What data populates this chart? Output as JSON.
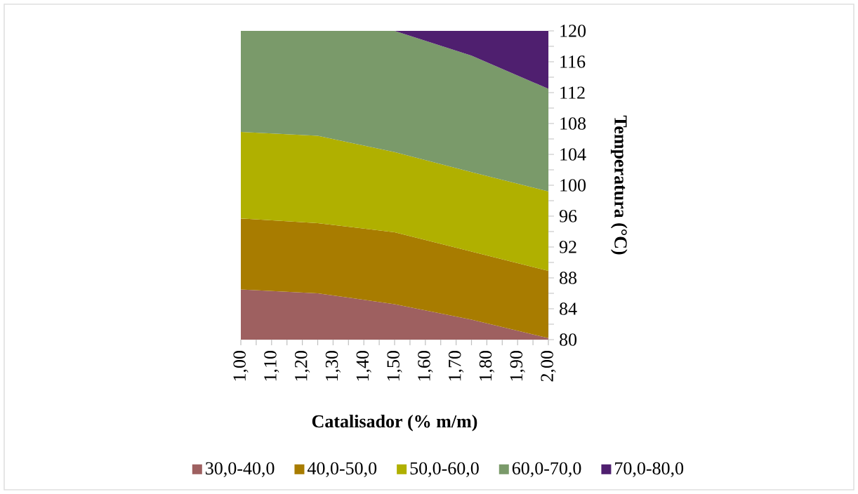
{
  "chart_data": {
    "type": "area",
    "xlabel": "Catalisador (% m/m)",
    "ylabel": "Temperatura (°C)",
    "x": [
      1.0,
      1.25,
      1.5,
      1.75,
      2.0
    ],
    "series": [
      {
        "name": "30,0-40,0",
        "color": "#9e6060",
        "values": [
          86.5,
          86.0,
          84.6,
          82.6,
          80.2
        ]
      },
      {
        "name": "40,0-50,0",
        "color": "#a87c00",
        "values": [
          95.7,
          95.1,
          93.9,
          91.4,
          88.9
        ]
      },
      {
        "name": "50,0-60,0",
        "color": "#b0b000",
        "values": [
          106.9,
          106.4,
          104.3,
          101.7,
          99.2
        ]
      },
      {
        "name": "60,0-70,0",
        "color": "#7a9a6a",
        "values": [
          120,
          120,
          120,
          116.8,
          112.5
        ]
      },
      {
        "name": "70,0-80,0",
        "color": "#4f1f6f",
        "values": [
          null,
          null,
          120,
          120,
          120
        ]
      }
    ],
    "xlim": [
      1,
      2
    ],
    "xticks": [
      {
        "value": 1.0,
        "label": "1,00"
      },
      {
        "value": 1.1,
        "label": "1,10"
      },
      {
        "value": 1.2,
        "label": "1,20"
      },
      {
        "value": 1.3,
        "label": "1,30"
      },
      {
        "value": 1.4,
        "label": "1,40"
      },
      {
        "value": 1.5,
        "label": "1,50"
      },
      {
        "value": 1.6,
        "label": "1,60"
      },
      {
        "value": 1.7,
        "label": "1,70"
      },
      {
        "value": 1.8,
        "label": "1,80"
      },
      {
        "value": 1.9,
        "label": "1,90"
      },
      {
        "value": 2.0,
        "label": "2,00"
      }
    ],
    "ylim": [
      80,
      120
    ],
    "yticks": [
      80,
      84,
      88,
      92,
      96,
      100,
      104,
      108,
      112,
      116,
      120
    ],
    "legend": "bottom"
  }
}
